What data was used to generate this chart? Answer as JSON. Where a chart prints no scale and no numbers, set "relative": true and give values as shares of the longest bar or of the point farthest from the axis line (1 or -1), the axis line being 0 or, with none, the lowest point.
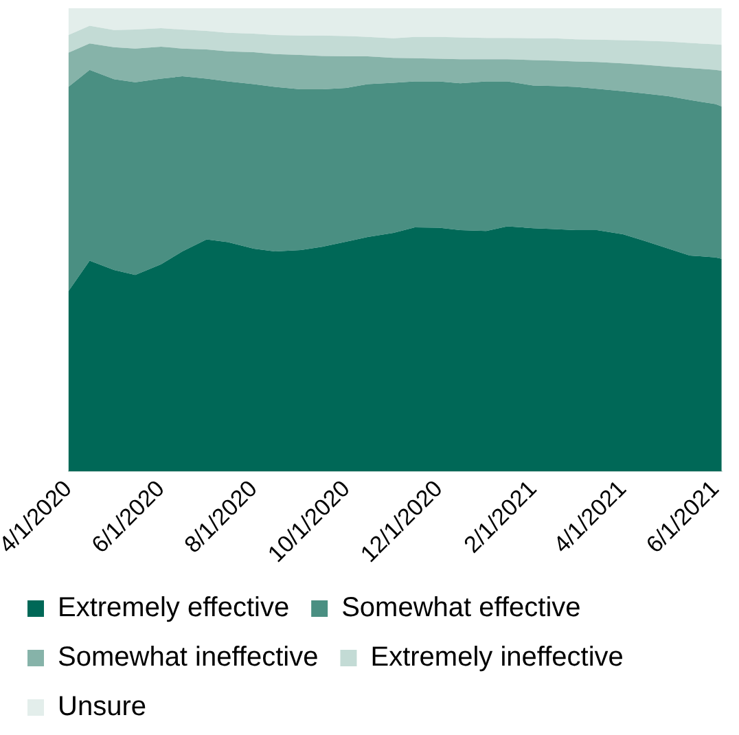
{
  "chart_data": {
    "type": "area",
    "stacked": true,
    "relative": true,
    "legend": "bottom",
    "x": [
      "2020-04-01",
      "2020-04-15",
      "2020-05-01",
      "2020-05-15",
      "2020-06-01",
      "2020-06-15",
      "2020-07-01",
      "2020-07-15",
      "2020-08-01",
      "2020-08-15",
      "2020-09-01",
      "2020-09-15",
      "2020-10-01",
      "2020-10-15",
      "2020-11-01",
      "2020-11-15",
      "2020-12-01",
      "2020-12-15",
      "2021-01-01",
      "2021-01-15",
      "2021-02-01",
      "2021-02-15",
      "2021-03-01",
      "2021-03-15",
      "2021-04-01",
      "2021-04-15",
      "2021-05-01",
      "2021-05-15",
      "2021-06-01",
      "2021-06-05"
    ],
    "xlim": [
      "2020-04-01",
      "2021-06-05"
    ],
    "xticks": [
      {
        "value": "2020-04-01",
        "label": "4/1/2020"
      },
      {
        "value": "2020-06-01",
        "label": "6/1/2020"
      },
      {
        "value": "2020-08-01",
        "label": "8/1/2020"
      },
      {
        "value": "2020-10-01",
        "label": "10/1/2020"
      },
      {
        "value": "2020-12-01",
        "label": "12/1/2020"
      },
      {
        "value": "2021-02-01",
        "label": "2/1/2021"
      },
      {
        "value": "2021-04-01",
        "label": "4/1/2021"
      },
      {
        "value": "2021-06-01",
        "label": "6/1/2021"
      }
    ],
    "series": [
      {
        "name": "Extremely effective",
        "color": "#006857",
        "values": [
          0.389,
          0.455,
          0.435,
          0.424,
          0.447,
          0.475,
          0.501,
          0.495,
          0.481,
          0.475,
          0.478,
          0.485,
          0.496,
          0.506,
          0.515,
          0.527,
          0.526,
          0.521,
          0.519,
          0.529,
          0.525,
          0.523,
          0.521,
          0.521,
          0.512,
          0.498,
          0.481,
          0.466,
          0.462,
          0.459
        ]
      },
      {
        "name": "Somewhat effective",
        "color": "#4a8f82",
        "values": [
          0.441,
          0.412,
          0.412,
          0.416,
          0.401,
          0.378,
          0.347,
          0.347,
          0.355,
          0.355,
          0.347,
          0.34,
          0.332,
          0.33,
          0.324,
          0.315,
          0.316,
          0.317,
          0.323,
          0.313,
          0.308,
          0.309,
          0.309,
          0.305,
          0.309,
          0.318,
          0.329,
          0.336,
          0.331,
          0.329
        ]
      },
      {
        "name": "Somewhat ineffective",
        "color": "#86b3a9",
        "values": [
          0.074,
          0.057,
          0.069,
          0.073,
          0.069,
          0.06,
          0.063,
          0.065,
          0.069,
          0.071,
          0.074,
          0.072,
          0.068,
          0.06,
          0.054,
          0.05,
          0.049,
          0.052,
          0.048,
          0.048,
          0.055,
          0.055,
          0.055,
          0.058,
          0.06,
          0.062,
          0.064,
          0.069,
          0.074,
          0.077
        ]
      },
      {
        "name": "Extremely ineffective",
        "color": "#c3dbd5",
        "values": [
          0.038,
          0.038,
          0.037,
          0.041,
          0.04,
          0.041,
          0.04,
          0.04,
          0.04,
          0.041,
          0.042,
          0.044,
          0.044,
          0.042,
          0.042,
          0.046,
          0.047,
          0.047,
          0.046,
          0.046,
          0.047,
          0.048,
          0.048,
          0.048,
          0.05,
          0.052,
          0.054,
          0.054,
          0.055,
          0.056
        ]
      },
      {
        "name": "Unsure",
        "color": "#e3eeeb",
        "values": [
          0.058,
          0.038,
          0.047,
          0.046,
          0.043,
          0.046,
          0.049,
          0.053,
          0.055,
          0.058,
          0.059,
          0.059,
          0.06,
          0.062,
          0.065,
          0.062,
          0.062,
          0.063,
          0.064,
          0.064,
          0.065,
          0.065,
          0.067,
          0.068,
          0.069,
          0.07,
          0.072,
          0.075,
          0.078,
          0.079
        ]
      }
    ]
  }
}
